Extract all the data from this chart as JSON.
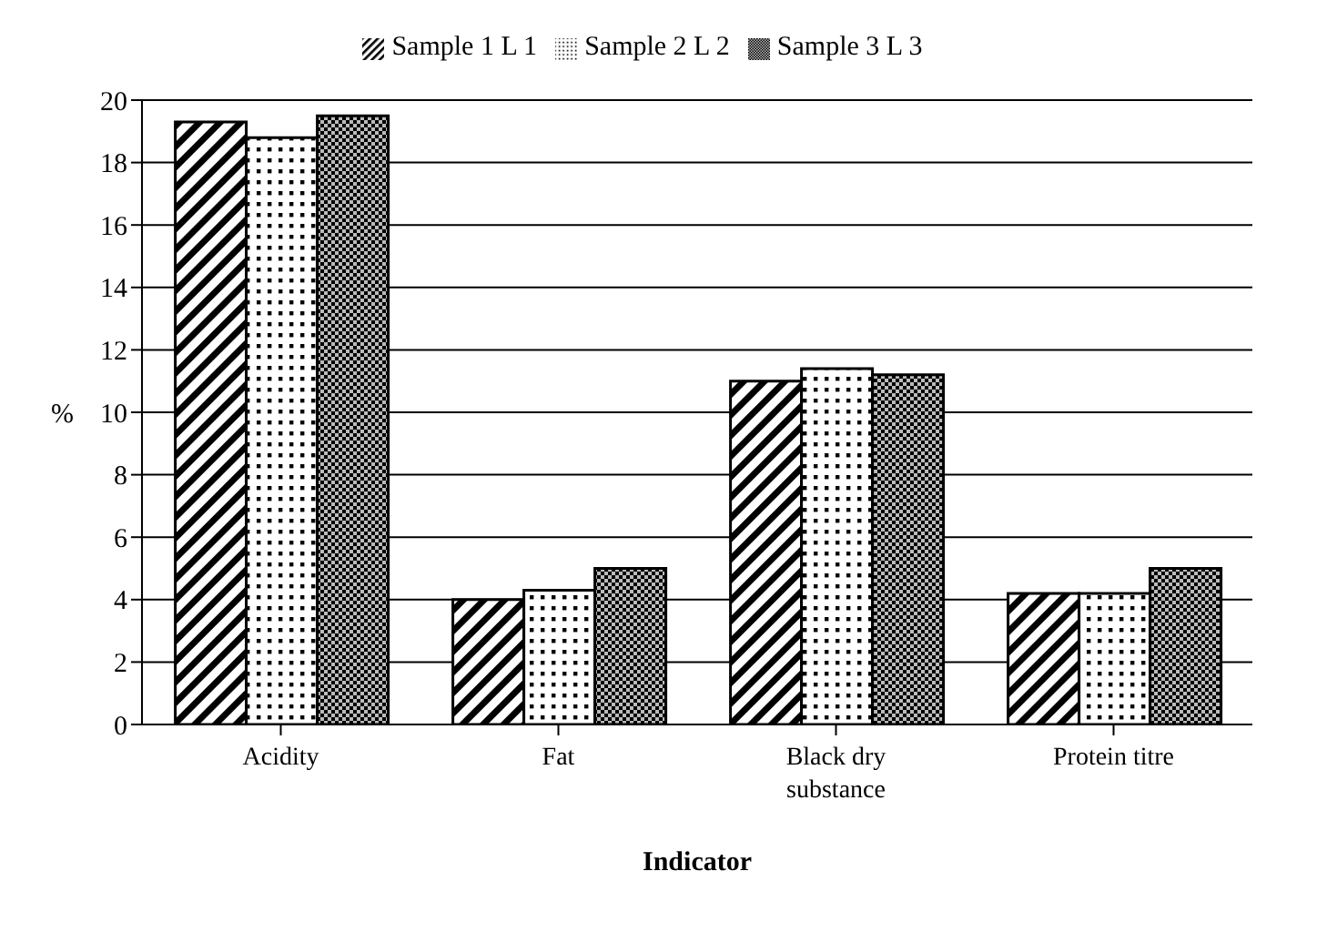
{
  "chart_data": {
    "type": "bar",
    "xlabel": "Indicator",
    "ylabel": "%",
    "categories": [
      "Acidity",
      "Fat",
      "Black dry substance",
      "Protein titre"
    ],
    "series": [
      {
        "name": "Sample 1 L 1",
        "color": "#000000",
        "values": [
          19.3,
          4.0,
          11.0,
          4.2
        ]
      },
      {
        "name": "Sample 2 L 2",
        "color": "#000000",
        "values": [
          18.8,
          4.3,
          11.4,
          4.2
        ]
      },
      {
        "name": "Sample 3 L 3",
        "color": "#000000",
        "values": [
          19.5,
          5.0,
          11.2,
          5.0
        ]
      }
    ],
    "ylim": [
      0,
      20
    ],
    "yticks": [
      0,
      2,
      4,
      6,
      8,
      10,
      12,
      14,
      16,
      18,
      20
    ],
    "grid": "y",
    "legend": "top"
  }
}
